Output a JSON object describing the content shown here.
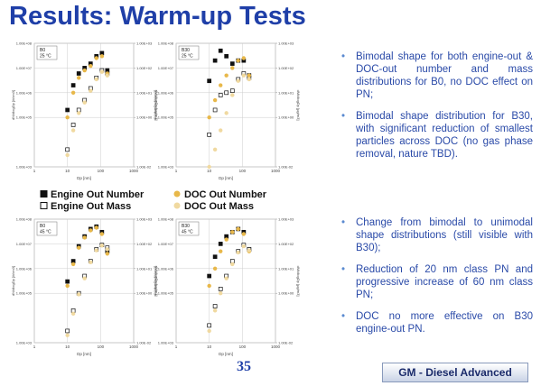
{
  "title": "Results: Warm-up Tests",
  "legend": [
    {
      "name": "Engine Out Number",
      "color": "#111111",
      "filled": true
    },
    {
      "name": "Engine Out Mass",
      "color": "#111111",
      "filled": false
    },
    {
      "name": "DOC Out Number",
      "color": "#e8b84a",
      "filled": true
    },
    {
      "name": "DOC Out Mass",
      "color": "#f0d9a0",
      "filled": true
    }
  ],
  "chart_data": [
    {
      "type": "scatter",
      "label": "B0",
      "subtitle": "25 °C",
      "xlabel": "Dp [nm]",
      "ylabel": "dN/dlogDp [#/cm3]",
      "y2label": "dM/dlogDp [µg/m3]",
      "log_x": true,
      "log_y": true,
      "xlim": [
        1,
        1000
      ],
      "xticks": [
        1,
        10,
        100,
        1000
      ],
      "ylim": [
        1000,
        100000000
      ],
      "yticks": [
        {
          "value": 1000,
          "label": "1.00E+03"
        },
        {
          "value": 100000,
          "label": "1.00E+05"
        },
        {
          "value": 1000000,
          "label": "1.00E+06"
        },
        {
          "value": 10000000,
          "label": "1.00E+07"
        },
        {
          "value": 100000000,
          "label": "1.00E+08"
        }
      ],
      "y2lim": [
        0.01,
        1000
      ],
      "y2ticks": [
        {
          "value": 0.01,
          "label": "1.00E-02"
        },
        {
          "value": 1,
          "label": "1.00E+00"
        },
        {
          "value": 10,
          "label": "1.00E+01"
        },
        {
          "value": 100,
          "label": "1.00E+02"
        },
        {
          "value": 1000,
          "label": "1.00E+03"
        }
      ],
      "x": [
        10,
        15,
        22,
        33,
        50,
        75,
        110,
        160
      ],
      "series": [
        {
          "values": [
            200000,
            2000000,
            6000000,
            10000000,
            15000000,
            30000000,
            40000000,
            8000000
          ]
        },
        {
          "axis": "y2",
          "values": [
            0.05,
            0.5,
            2,
            5,
            15,
            40,
            80,
            60
          ]
        },
        {
          "values": [
            100000,
            1000000,
            4000000,
            8000000,
            12000000,
            25000000,
            30000000,
            6000000
          ]
        },
        {
          "axis": "y2",
          "values": [
            0.03,
            0.3,
            1.5,
            4,
            12,
            35,
            70,
            50
          ]
        }
      ]
    },
    {
      "type": "scatter",
      "label": "B30",
      "subtitle": "25 °C",
      "xlabel": "Dp [nm]",
      "ylabel": "dN/dlogDp [#/cm3]",
      "y2label": "dM/dlogDp [µg/m3]",
      "log_x": true,
      "log_y": true,
      "xlim": [
        1,
        1000
      ],
      "xticks": [
        1,
        10,
        100,
        1000
      ],
      "ylim": [
        1000,
        100000000
      ],
      "yticks": [
        {
          "value": 1000,
          "label": "1.00E+03"
        },
        {
          "value": 100000,
          "label": "1.00E+05"
        },
        {
          "value": 1000000,
          "label": "1.00E+06"
        },
        {
          "value": 10000000,
          "label": "1.00E+07"
        },
        {
          "value": 100000000,
          "label": "1.00E+08"
        }
      ],
      "y2lim": [
        0.01,
        1000
      ],
      "y2ticks": [
        {
          "value": 0.01,
          "label": "1.00E-02"
        },
        {
          "value": 1,
          "label": "1.00E+00"
        },
        {
          "value": 10,
          "label": "1.00E+01"
        },
        {
          "value": 100,
          "label": "1.00E+02"
        },
        {
          "value": 1000,
          "label": "1.00E+03"
        }
      ],
      "x": [
        10,
        15,
        22,
        33,
        50,
        75,
        110,
        160
      ],
      "series": [
        {
          "values": [
            3000000,
            20000000,
            50000000,
            30000000,
            15000000,
            20000000,
            20000000,
            5000000
          ]
        },
        {
          "axis": "y2",
          "values": [
            0.2,
            2,
            8,
            10,
            12,
            35,
            60,
            40
          ]
        },
        {
          "values": [
            100000,
            500000,
            2000000,
            5000000,
            10000000,
            20000000,
            25000000,
            5000000
          ]
        },
        {
          "axis": "y2",
          "values": [
            0.01,
            0.05,
            0.3,
            1.5,
            8,
            30,
            50,
            35
          ]
        }
      ]
    },
    {
      "type": "scatter",
      "label": "B0",
      "subtitle": "45 °C",
      "xlabel": "Dp [nm]",
      "ylabel": "dN/dlogDp [#/cm3]",
      "y2label": "dM/dlogDp [µg/m3]",
      "log_x": true,
      "log_y": true,
      "xlim": [
        1,
        1000
      ],
      "xticks": [
        1,
        10,
        100,
        1000
      ],
      "ylim": [
        1000,
        100000000
      ],
      "yticks": [
        {
          "value": 1000,
          "label": "1.00E+03"
        },
        {
          "value": 100000,
          "label": "1.00E+05"
        },
        {
          "value": 1000000,
          "label": "1.00E+06"
        },
        {
          "value": 10000000,
          "label": "1.00E+07"
        },
        {
          "value": 100000000,
          "label": "1.00E+08"
        }
      ],
      "y2lim": [
        0.01,
        1000
      ],
      "y2ticks": [
        {
          "value": 0.01,
          "label": "1.00E-02"
        },
        {
          "value": 1,
          "label": "1.00E+00"
        },
        {
          "value": 10,
          "label": "1.00E+01"
        },
        {
          "value": 100,
          "label": "1.00E+02"
        },
        {
          "value": 1000,
          "label": "1.00E+03"
        }
      ],
      "x": [
        10,
        15,
        22,
        33,
        50,
        75,
        110,
        160
      ],
      "series": [
        {
          "values": [
            300000,
            2000000,
            8000000,
            20000000,
            40000000,
            50000000,
            30000000,
            5000000
          ]
        },
        {
          "axis": "y2",
          "values": [
            0.03,
            0.2,
            1,
            5,
            20,
            60,
            90,
            70
          ]
        },
        {
          "values": [
            200000,
            1500000,
            7000000,
            18000000,
            35000000,
            45000000,
            25000000,
            4000000
          ]
        },
        {
          "axis": "y2",
          "values": [
            0.02,
            0.15,
            0.9,
            4,
            18,
            55,
            85,
            60
          ]
        }
      ]
    },
    {
      "type": "scatter",
      "label": "B30",
      "subtitle": "45 °C",
      "xlabel": "Dp [nm]",
      "ylabel": "dN/dlogDp [#/cm3]",
      "y2label": "dM/dlogDp [µg/m3]",
      "log_x": true,
      "log_y": true,
      "xlim": [
        1,
        1000
      ],
      "xticks": [
        1,
        10,
        100,
        1000
      ],
      "ylim": [
        1000,
        100000000
      ],
      "yticks": [
        {
          "value": 1000,
          "label": "1.00E+03"
        },
        {
          "value": 100000,
          "label": "1.00E+05"
        },
        {
          "value": 1000000,
          "label": "1.00E+06"
        },
        {
          "value": 10000000,
          "label": "1.00E+07"
        },
        {
          "value": 100000000,
          "label": "1.00E+08"
        }
      ],
      "y2lim": [
        0.01,
        1000
      ],
      "y2ticks": [
        {
          "value": 0.01,
          "label": "1.00E-02"
        },
        {
          "value": 1,
          "label": "1.00E+00"
        },
        {
          "value": 10,
          "label": "1.00E+01"
        },
        {
          "value": 100,
          "label": "1.00E+02"
        },
        {
          "value": 1000,
          "label": "1.00E+03"
        }
      ],
      "x": [
        10,
        15,
        22,
        33,
        50,
        75,
        110,
        160
      ],
      "series": [
        {
          "values": [
            500000,
            3000000,
            10000000,
            20000000,
            30000000,
            40000000,
            30000000,
            6000000
          ]
        },
        {
          "axis": "y2",
          "values": [
            0.05,
            0.3,
            1.5,
            5,
            20,
            50,
            90,
            60
          ]
        },
        {
          "values": [
            200000,
            1000000,
            5000000,
            15000000,
            30000000,
            40000000,
            25000000,
            5000000
          ]
        },
        {
          "axis": "y2",
          "values": [
            0.03,
            0.2,
            1,
            4,
            15,
            45,
            80,
            55
          ]
        }
      ]
    }
  ],
  "bullets_top": [
    "Bimodal shape for both engine-out & DOC-out number and mass distributions for B0, no DOC effect on PN;",
    "Bimodal shape distribution for B30, with significant reduction of smallest particles across DOC (no gas phase removal, nature TBD)."
  ],
  "bullets_bottom": [
    "Change from bimodal to unimodal shape distributions (still visible with B30);",
    "Reduction of 20 nm class PN and progressive increase of 60 nm class PN;",
    "DOC no more effective on B30 engine-out PN."
  ],
  "page_number": "35",
  "footer": "GM - Diesel Advanced"
}
